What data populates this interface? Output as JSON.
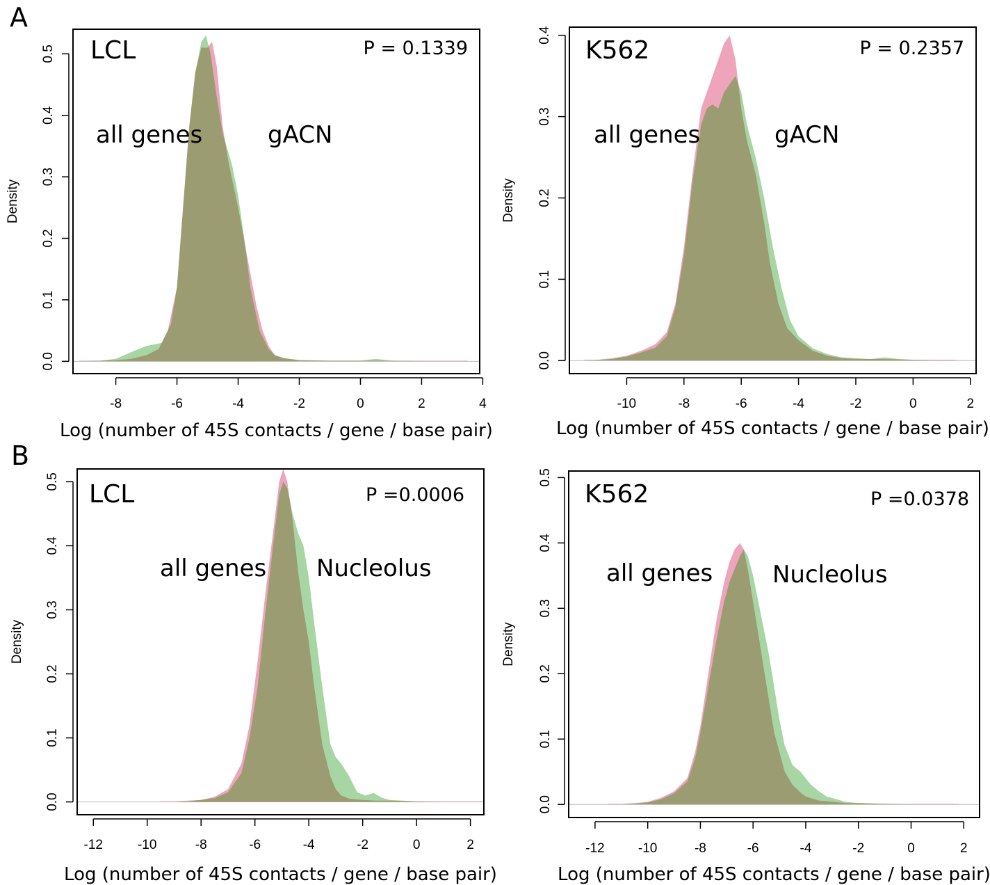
{
  "figure": {
    "panel_letters": [
      "A",
      "B"
    ]
  },
  "colors": {
    "all_genes": "#ec9ab4",
    "subset": "#9ed09a",
    "overlap": "#9b9c72",
    "axis": "#000000",
    "baseline": "#bbbbbb"
  },
  "chart_data": [
    {
      "panel": "A",
      "type": "area",
      "title": "LCL",
      "annotation": "P = 0.1339",
      "xlabel": "Log (number of 45S contacts / gene / base pair)",
      "ylabel": "Density",
      "xlim": [
        -9.4,
        3.9
      ],
      "ylim": [
        -0.02,
        0.54
      ],
      "xticks": [
        -8,
        -6,
        -4,
        -2,
        0,
        2,
        4
      ],
      "yticks": [
        0.0,
        0.1,
        0.2,
        0.3,
        0.4,
        0.5
      ],
      "grid": false,
      "series_labels": [
        "all genes",
        "gACN"
      ],
      "series": [
        {
          "x": [
            -9.2,
            -8.5,
            -8,
            -7.5,
            -7,
            -6.6,
            -6.3,
            -6,
            -5.8,
            -5.6,
            -5.4,
            -5.2,
            -5.0,
            -4.85,
            -4.7,
            -4.5,
            -4.3,
            -4.0,
            -3.7,
            -3.4,
            -3.2,
            -3.0,
            -2.8,
            -2.5,
            -2,
            -1,
            0,
            1,
            2,
            3,
            3.5
          ],
          "values": [
            0.001,
            0.001,
            0.002,
            0.004,
            0.01,
            0.02,
            0.05,
            0.12,
            0.25,
            0.38,
            0.47,
            0.51,
            0.51,
            0.52,
            0.48,
            0.38,
            0.32,
            0.25,
            0.17,
            0.09,
            0.05,
            0.025,
            0.01,
            0.005,
            0.002,
            0.001,
            0.001,
            0.001,
            0.001,
            0.001,
            0.001
          ]
        },
        {
          "x": [
            -9.2,
            -8.5,
            -8,
            -7.5,
            -7,
            -6.8,
            -6.5,
            -6.2,
            -6.0,
            -5.8,
            -5.6,
            -5.4,
            -5.2,
            -5.05,
            -4.9,
            -4.7,
            -4.5,
            -4.2,
            -4.0,
            -3.8,
            -3.6,
            -3.3,
            -3.0,
            -2.8,
            -2.5,
            -2,
            -1,
            0,
            0.5,
            1,
            2,
            3,
            3.5
          ],
          "values": [
            0.0,
            0.001,
            0.004,
            0.015,
            0.025,
            0.027,
            0.03,
            0.06,
            0.12,
            0.25,
            0.38,
            0.47,
            0.52,
            0.53,
            0.5,
            0.43,
            0.37,
            0.32,
            0.27,
            0.2,
            0.12,
            0.05,
            0.02,
            0.01,
            0.005,
            0.002,
            0.001,
            0.001,
            0.004,
            0.001,
            0.0,
            0.0,
            0.0
          ]
        }
      ]
    },
    {
      "panel": "A",
      "type": "area",
      "title": "K562",
      "annotation": "P = 0.2357",
      "xlabel": "Log (number of 45S contacts / gene / base pair)",
      "ylabel": "Density",
      "xlim": [
        -12.0,
        2.2
      ],
      "ylim": [
        -0.016,
        0.41
      ],
      "xticks": [
        -10,
        -8,
        -6,
        -4,
        -2,
        0,
        2
      ],
      "yticks": [
        0.0,
        0.1,
        0.2,
        0.3,
        0.4
      ],
      "grid": false,
      "series_labels": [
        "all genes",
        "gACN"
      ],
      "series": [
        {
          "x": [
            -11.5,
            -11,
            -10.5,
            -10,
            -9.5,
            -9,
            -8.6,
            -8.3,
            -8,
            -7.7,
            -7.4,
            -7.1,
            -6.8,
            -6.6,
            -6.4,
            -6.2,
            -6.0,
            -5.8,
            -5.5,
            -5.2,
            -5.0,
            -4.7,
            -4.4,
            -4.0,
            -3.5,
            -3.0,
            -2.5,
            -2,
            -1,
            0,
            1,
            1.5
          ],
          "values": [
            0.001,
            0.001,
            0.003,
            0.006,
            0.012,
            0.02,
            0.035,
            0.07,
            0.14,
            0.23,
            0.31,
            0.34,
            0.37,
            0.39,
            0.4,
            0.37,
            0.31,
            0.27,
            0.23,
            0.17,
            0.12,
            0.07,
            0.04,
            0.025,
            0.012,
            0.006,
            0.003,
            0.002,
            0.002,
            0.001,
            0.001,
            0.001
          ]
        },
        {
          "x": [
            -11.5,
            -11,
            -10.5,
            -10,
            -9.5,
            -9,
            -8.6,
            -8.3,
            -8,
            -7.7,
            -7.4,
            -7.2,
            -7.0,
            -6.8,
            -6.6,
            -6.4,
            -6.2,
            -6.0,
            -5.8,
            -5.5,
            -5.2,
            -4.9,
            -4.6,
            -4.3,
            -4.0,
            -3.5,
            -3.0,
            -2.5,
            -2,
            -1.5,
            -1,
            -0.5,
            0,
            1,
            1.5
          ],
          "values": [
            0.0,
            0.001,
            0.002,
            0.005,
            0.01,
            0.016,
            0.03,
            0.065,
            0.13,
            0.22,
            0.29,
            0.31,
            0.315,
            0.31,
            0.33,
            0.34,
            0.35,
            0.33,
            0.29,
            0.25,
            0.2,
            0.14,
            0.09,
            0.05,
            0.03,
            0.015,
            0.008,
            0.004,
            0.003,
            0.002,
            0.004,
            0.002,
            0.001,
            0.0,
            0.0
          ]
        }
      ]
    },
    {
      "panel": "B",
      "type": "area",
      "title": "LCL",
      "annotation": "P =0.0006",
      "xlabel": "Log (number of 45S contacts / gene / base pair)",
      "ylabel": "Density",
      "xlim": [
        -12.6,
        2.5
      ],
      "ylim": [
        -0.02,
        0.52
      ],
      "xticks": [
        -12,
        -10,
        -8,
        -6,
        -4,
        -2,
        0,
        2
      ],
      "yticks": [
        0.0,
        0.1,
        0.2,
        0.3,
        0.4,
        0.5
      ],
      "grid": false,
      "series_labels": [
        "all genes",
        "Nucleolus"
      ],
      "series": [
        {
          "x": [
            -9.5,
            -9,
            -8.5,
            -8,
            -7.5,
            -7,
            -6.5,
            -6.2,
            -5.9,
            -5.6,
            -5.3,
            -5.1,
            -4.95,
            -4.8,
            -4.6,
            -4.4,
            -4.2,
            -4.0,
            -3.8,
            -3.5,
            -3.2,
            -3.0,
            -2.8,
            -2.5,
            -2,
            -1.5,
            -1,
            0,
            1,
            2,
            2.5
          ],
          "values": [
            0.001,
            0.001,
            0.002,
            0.003,
            0.008,
            0.02,
            0.06,
            0.12,
            0.22,
            0.33,
            0.43,
            0.5,
            0.52,
            0.5,
            0.44,
            0.36,
            0.3,
            0.25,
            0.18,
            0.09,
            0.04,
            0.02,
            0.01,
            0.005,
            0.003,
            0.002,
            0.002,
            0.001,
            0.001,
            0.001,
            0.001
          ]
        },
        {
          "x": [
            -9.5,
            -9,
            -8.5,
            -8,
            -7.5,
            -7,
            -6.5,
            -6.2,
            -5.9,
            -5.6,
            -5.3,
            -5.1,
            -4.95,
            -4.8,
            -4.6,
            -4.4,
            -4.2,
            -4.0,
            -3.8,
            -3.5,
            -3.2,
            -3.0,
            -2.8,
            -2.5,
            -2.2,
            -1.9,
            -1.6,
            -1.3,
            -1.0,
            -0.5,
            0,
            1,
            2,
            2.5
          ],
          "values": [
            0.0,
            0.0,
            0.001,
            0.003,
            0.006,
            0.015,
            0.045,
            0.1,
            0.18,
            0.3,
            0.41,
            0.48,
            0.5,
            0.49,
            0.45,
            0.42,
            0.4,
            0.35,
            0.28,
            0.18,
            0.09,
            0.07,
            0.06,
            0.04,
            0.015,
            0.01,
            0.014,
            0.007,
            0.003,
            0.002,
            0.001,
            0.0,
            0.0,
            0.0
          ]
        }
      ]
    },
    {
      "panel": "B",
      "type": "area",
      "title": "K562",
      "annotation": "P =0.0378",
      "xlabel": "Log (number of 45S contacts / gene / base pair)",
      "ylabel": "Density",
      "xlim": [
        -13.0,
        2.6
      ],
      "ylim": [
        -0.02,
        0.51
      ],
      "xticks": [
        -12,
        -10,
        -8,
        -6,
        -4,
        -2,
        0,
        2
      ],
      "yticks": [
        0.0,
        0.1,
        0.2,
        0.3,
        0.4,
        0.5
      ],
      "grid": false,
      "series_labels": [
        "all genes",
        "Nucleolus"
      ],
      "series": [
        {
          "x": [
            -11.5,
            -11,
            -10.5,
            -10,
            -9.5,
            -9,
            -8.5,
            -8.2,
            -8.0,
            -7.7,
            -7.4,
            -7.1,
            -6.9,
            -6.7,
            -6.5,
            -6.35,
            -6.2,
            -6.0,
            -5.8,
            -5.6,
            -5.4,
            -5.2,
            -5.0,
            -4.8,
            -4.5,
            -4.2,
            -4.0,
            -3.5,
            -3.0,
            -2.5,
            -2,
            -1,
            0,
            1,
            1.8
          ],
          "values": [
            0.001,
            0.001,
            0.002,
            0.004,
            0.01,
            0.02,
            0.04,
            0.08,
            0.12,
            0.2,
            0.28,
            0.34,
            0.37,
            0.39,
            0.4,
            0.39,
            0.36,
            0.31,
            0.26,
            0.21,
            0.16,
            0.11,
            0.08,
            0.05,
            0.03,
            0.018,
            0.012,
            0.006,
            0.004,
            0.002,
            0.002,
            0.001,
            0.001,
            0.001,
            0.001
          ]
        },
        {
          "x": [
            -11.5,
            -11,
            -10.5,
            -10,
            -9.5,
            -9,
            -8.5,
            -8.2,
            -8.0,
            -7.7,
            -7.4,
            -7.1,
            -6.9,
            -6.7,
            -6.5,
            -6.35,
            -6.2,
            -6.0,
            -5.8,
            -5.6,
            -5.4,
            -5.2,
            -5.0,
            -4.8,
            -4.5,
            -4.2,
            -4.0,
            -3.8,
            -3.5,
            -3.2,
            -3.0,
            -2.5,
            -2,
            -1,
            0,
            1,
            1.8
          ],
          "values": [
            0.0,
            0.0,
            0.001,
            0.003,
            0.008,
            0.017,
            0.035,
            0.07,
            0.11,
            0.18,
            0.25,
            0.31,
            0.34,
            0.36,
            0.38,
            0.39,
            0.38,
            0.35,
            0.31,
            0.27,
            0.23,
            0.18,
            0.13,
            0.09,
            0.06,
            0.05,
            0.04,
            0.03,
            0.02,
            0.012,
            0.01,
            0.004,
            0.002,
            0.001,
            0.0,
            0.0,
            0.0
          ]
        }
      ]
    }
  ]
}
